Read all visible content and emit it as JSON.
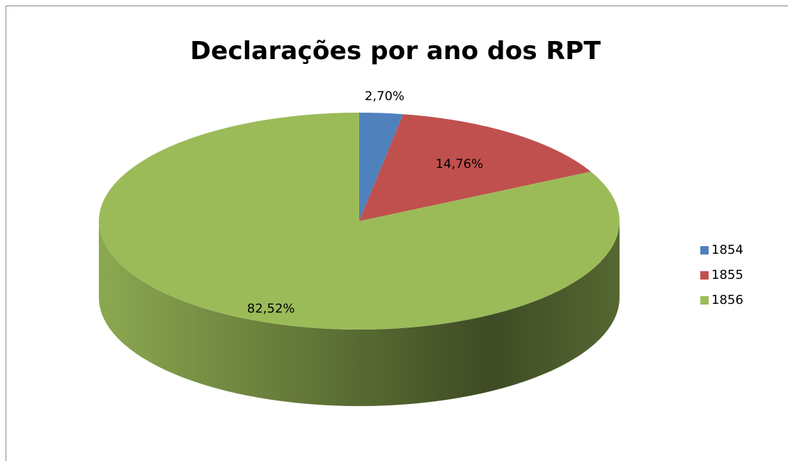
{
  "chart_data": {
    "type": "pie",
    "title": "Declarações por ano dos RPT",
    "categories": [
      "1854",
      "1855",
      "1856"
    ],
    "values": [
      2.7,
      14.76,
      82.52
    ],
    "value_labels": [
      "2,70%",
      "14,76%",
      "82,52%"
    ],
    "colors": [
      "#4f81bd",
      "#c0504d",
      "#9bbb59"
    ],
    "legend": "right"
  }
}
